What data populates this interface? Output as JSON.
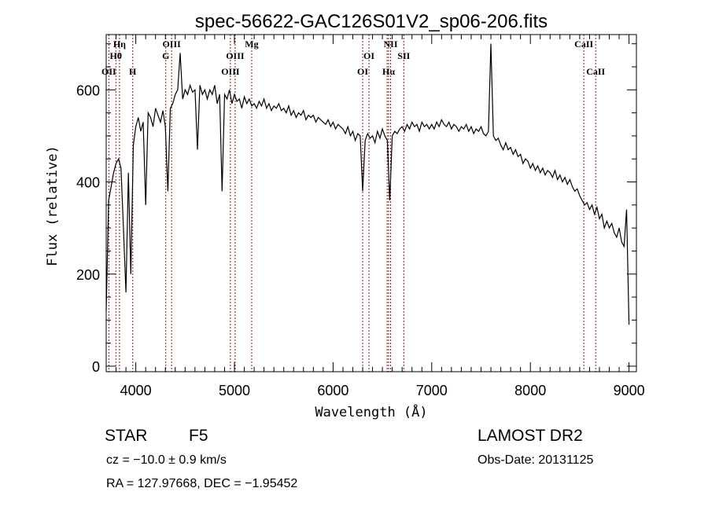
{
  "chart_data": {
    "type": "line",
    "title": "spec-56622-GAC126S01V2_sp06-206.fits",
    "xlabel": "Wavelength (Å)",
    "ylabel": "Flux (relative)",
    "xlim": [
      3700,
      9075
    ],
    "ylim": [
      -12,
      720
    ],
    "xticks": [
      4000,
      5000,
      6000,
      7000,
      8000,
      9000
    ],
    "xtick_labels": [
      "4000",
      "5000",
      "6000",
      "7000",
      "8000",
      "9000"
    ],
    "yticks": [
      0,
      200,
      400,
      600
    ],
    "ytick_labels": [
      "0",
      "200",
      "400",
      "600"
    ],
    "grid": false,
    "line_color": "#000000",
    "marker_color": "#8b1a1a",
    "spectrum": {
      "x_start": 3700,
      "x_step": 25,
      "flux": [
        120,
        360,
        390,
        420,
        440,
        450,
        430,
        300,
        160,
        420,
        200,
        480,
        520,
        540,
        510,
        530,
        350,
        550,
        540,
        520,
        560,
        545,
        530,
        555,
        520,
        380,
        560,
        570,
        590,
        600,
        680,
        580,
        600,
        590,
        610,
        595,
        600,
        470,
        610,
        590,
        600,
        580,
        600,
        590,
        610,
        570,
        590,
        380,
        590,
        580,
        600,
        570,
        590,
        575,
        580,
        560,
        585,
        570,
        580,
        565,
        570,
        560,
        575,
        565,
        580,
        560,
        570,
        555,
        565,
        560,
        570,
        555,
        560,
        550,
        565,
        545,
        555,
        540,
        550,
        545,
        555,
        535,
        545,
        540,
        545,
        530,
        540,
        535,
        530,
        525,
        535,
        520,
        530,
        515,
        525,
        520,
        515,
        505,
        520,
        500,
        510,
        490,
        505,
        500,
        380,
        490,
        505,
        495,
        500,
        485,
        510,
        495,
        515,
        500,
        490,
        360,
        500,
        510,
        505,
        515,
        520,
        510,
        525,
        515,
        530,
        520,
        525,
        510,
        530,
        520,
        525,
        515,
        525,
        515,
        530,
        520,
        535,
        525,
        520,
        530,
        515,
        525,
        520,
        510,
        520,
        515,
        525,
        510,
        520,
        505,
        515,
        510,
        520,
        505,
        500,
        510,
        700,
        500,
        490,
        495,
        480,
        470,
        485,
        470,
        475,
        460,
        470,
        455,
        460,
        440,
        450,
        445,
        430,
        440,
        425,
        435,
        420,
        430,
        415,
        425,
        420,
        410,
        425,
        405,
        415,
        400,
        410,
        395,
        405,
        390,
        380,
        385,
        370,
        360,
        350,
        355,
        340,
        350,
        330,
        345,
        320,
        330,
        300,
        315,
        300,
        310,
        290,
        280,
        300,
        270,
        260,
        340,
        90
      ]
    },
    "line_markers": [
      {
        "label": "OII",
        "wavelength": 3727,
        "row": 3
      },
      {
        "label": "Hθ",
        "wavelength": 3798,
        "row": 2
      },
      {
        "label": "Hη",
        "wavelength": 3835,
        "row": 1
      },
      {
        "label": "H",
        "wavelength": 3969,
        "row": 3
      },
      {
        "label": "G",
        "wavelength": 4304,
        "row": 2
      },
      {
        "label": "OIII",
        "wavelength": 4363,
        "row": 1
      },
      {
        "label": "OIII",
        "wavelength": 4959,
        "row": 3
      },
      {
        "label": "OIII",
        "wavelength": 5007,
        "row": 2
      },
      {
        "label": "Mg",
        "wavelength": 5175,
        "row": 1
      },
      {
        "label": "OI",
        "wavelength": 6300,
        "row": 3
      },
      {
        "label": "OI",
        "wavelength": 6364,
        "row": 2
      },
      {
        "label": "Hα",
        "wavelength": 6563,
        "row": 3
      },
      {
        "label": "NII",
        "wavelength": 6583,
        "row": 1
      },
      {
        "label": "NII",
        "wavelength": 6548,
        "row": 0
      },
      {
        "label": "SII",
        "wavelength": 6717,
        "row": 2
      },
      {
        "label": "CaII",
        "wavelength": 8542,
        "row": 1
      },
      {
        "label": "CaII",
        "wavelength": 8662,
        "row": 3
      }
    ]
  },
  "info": {
    "class": "STAR",
    "subclass": "F5",
    "survey": "LAMOST DR2",
    "cz": "cz = −10.0 ± 0.9 km/s",
    "obs_date": "Obs-Date: 20131125",
    "coords": "RA = 127.97668, DEC =  −1.95452"
  }
}
